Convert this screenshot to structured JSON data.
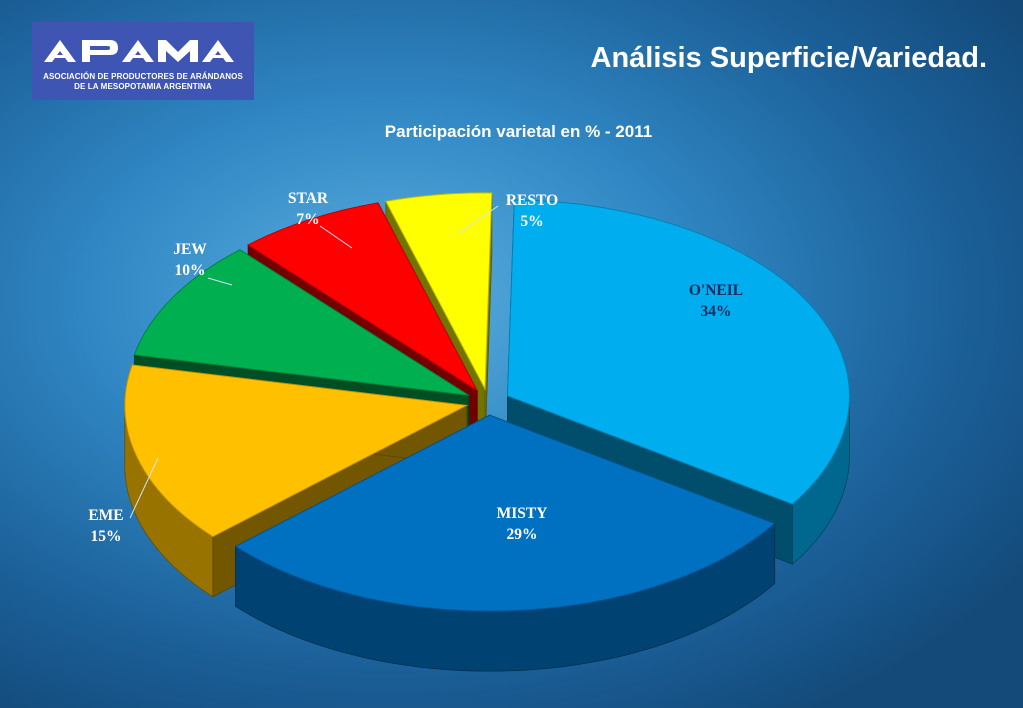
{
  "header": {
    "logo_text": "APAMA",
    "logo_line1": "ASOCIACIÓN DE PRODUCTORES DE ARÁNDANOS",
    "logo_line2": "DE LA MESOPOTAMIA ARGENTINA",
    "page_title": "Análisis Superficie/Variedad."
  },
  "chart_data": {
    "type": "pie",
    "style": "3d-exploded",
    "title": "Participación varietal en % - 2011",
    "slices": [
      {
        "name": "O'NEIL",
        "value": 34,
        "label": "34%",
        "color": "#00aeef"
      },
      {
        "name": "MISTY",
        "value": 29,
        "label": "29%",
        "color": "#0070c0"
      },
      {
        "name": "EME",
        "value": 15,
        "label": "15%",
        "color": "#ffc000"
      },
      {
        "name": "JEW",
        "value": 10,
        "label": "10%",
        "color": "#00b050"
      },
      {
        "name": "STAR",
        "value": 7,
        "label": "7%",
        "color": "#ff0000"
      },
      {
        "name": "RESTO",
        "value": 5,
        "label": "5%",
        "color": "#ffff00"
      }
    ]
  }
}
